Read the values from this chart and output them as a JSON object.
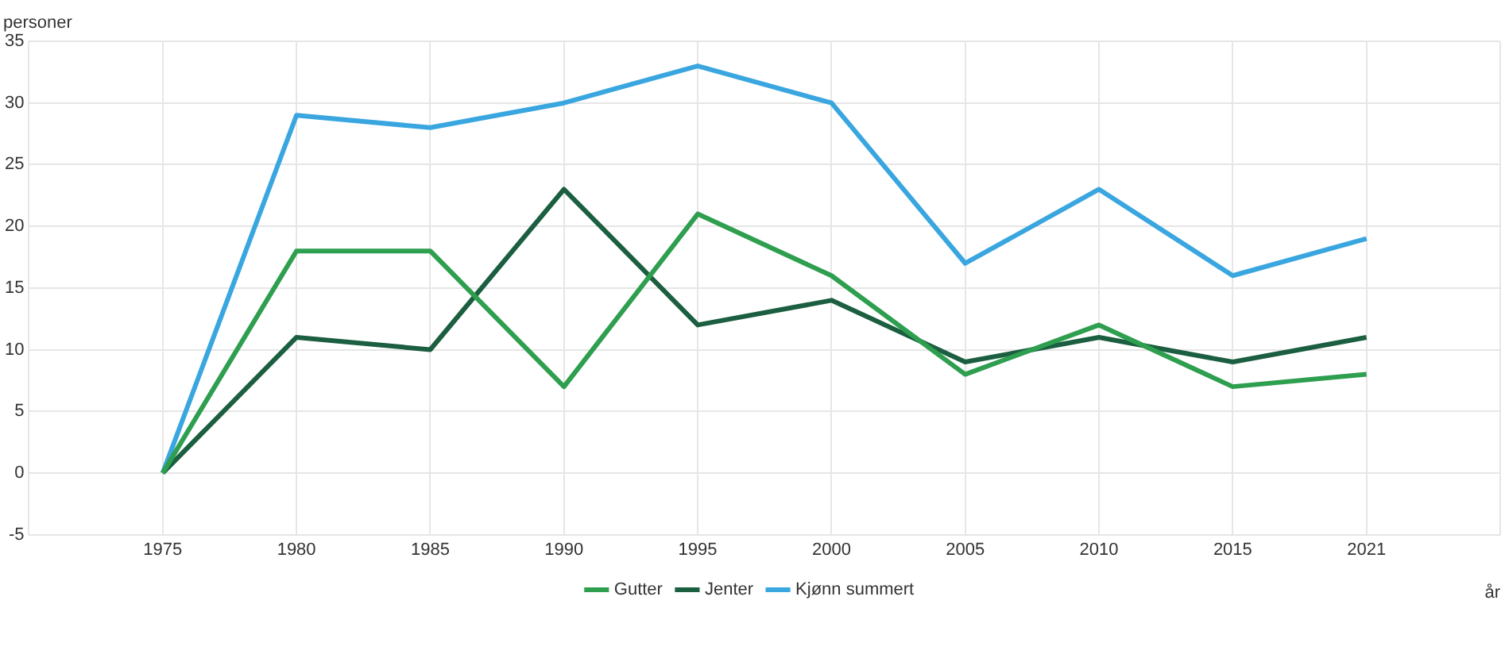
{
  "chart_data": {
    "type": "line",
    "xlabel": "år",
    "ylabel": "personer",
    "categories": [
      "1975",
      "1980",
      "1985",
      "1990",
      "1995",
      "2000",
      "2005",
      "2010",
      "2015",
      "2021"
    ],
    "series": [
      {
        "name": "Gutter",
        "color": "#2e9e4f",
        "values": [
          0,
          18,
          18,
          7,
          21,
          16,
          8,
          12,
          7,
          8
        ]
      },
      {
        "name": "Jenter",
        "color": "#1b5e40",
        "values": [
          0,
          11,
          10,
          23,
          12,
          14,
          9,
          11,
          9,
          11
        ]
      },
      {
        "name": "Kjønn summert",
        "color": "#3aa6e0",
        "values": [
          0,
          29,
          28,
          30,
          33,
          30,
          17,
          23,
          16,
          19
        ]
      }
    ],
    "ylim": [
      -5,
      35
    ],
    "yticks": [
      -5,
      0,
      5,
      10,
      15,
      20,
      25,
      30,
      35
    ],
    "grid": true,
    "legend": "bottom",
    "marker": "none",
    "line_style": "solid"
  }
}
